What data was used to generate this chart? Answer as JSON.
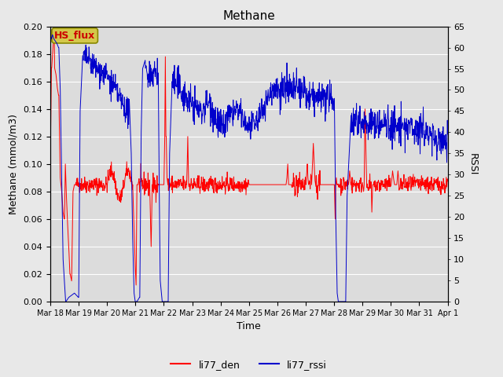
{
  "title": "Methane",
  "xlabel": "Time",
  "ylabel_left": "Methane (mmol/m3)",
  "ylabel_right": "RSSI",
  "left_ylim": [
    0.0,
    0.2
  ],
  "right_ylim": [
    0,
    65
  ],
  "left_yticks": [
    0.0,
    0.02,
    0.04,
    0.06,
    0.08,
    0.1,
    0.12,
    0.14,
    0.16,
    0.18,
    0.2
  ],
  "right_yticks": [
    0,
    5,
    10,
    15,
    20,
    25,
    30,
    35,
    40,
    45,
    50,
    55,
    60,
    65
  ],
  "xtick_labels": [
    "Mar 18",
    "Mar 19",
    "Mar 20",
    "Mar 21",
    "Mar 22",
    "Mar 23",
    "Mar 24",
    "Mar 25",
    "Mar 26",
    "Mar 27",
    "Mar 28",
    "Mar 29",
    "Mar 30",
    "Mar 31",
    "Apr 1"
  ],
  "color_den": "#ff0000",
  "color_rssi": "#0000cc",
  "legend_label_den": "li77_den",
  "legend_label_rssi": "li77_rssi",
  "annotation_text": "HS_flux",
  "annotation_box_facecolor": "#d4c84a",
  "annotation_box_edgecolor": "#888800",
  "annotation_text_color": "#cc0000",
  "fig_facecolor": "#e8e8e8",
  "plot_facecolor": "#dcdcdc",
  "grid_color": "#ffffff",
  "title_fontsize": 11,
  "label_fontsize": 9,
  "tick_fontsize": 8
}
